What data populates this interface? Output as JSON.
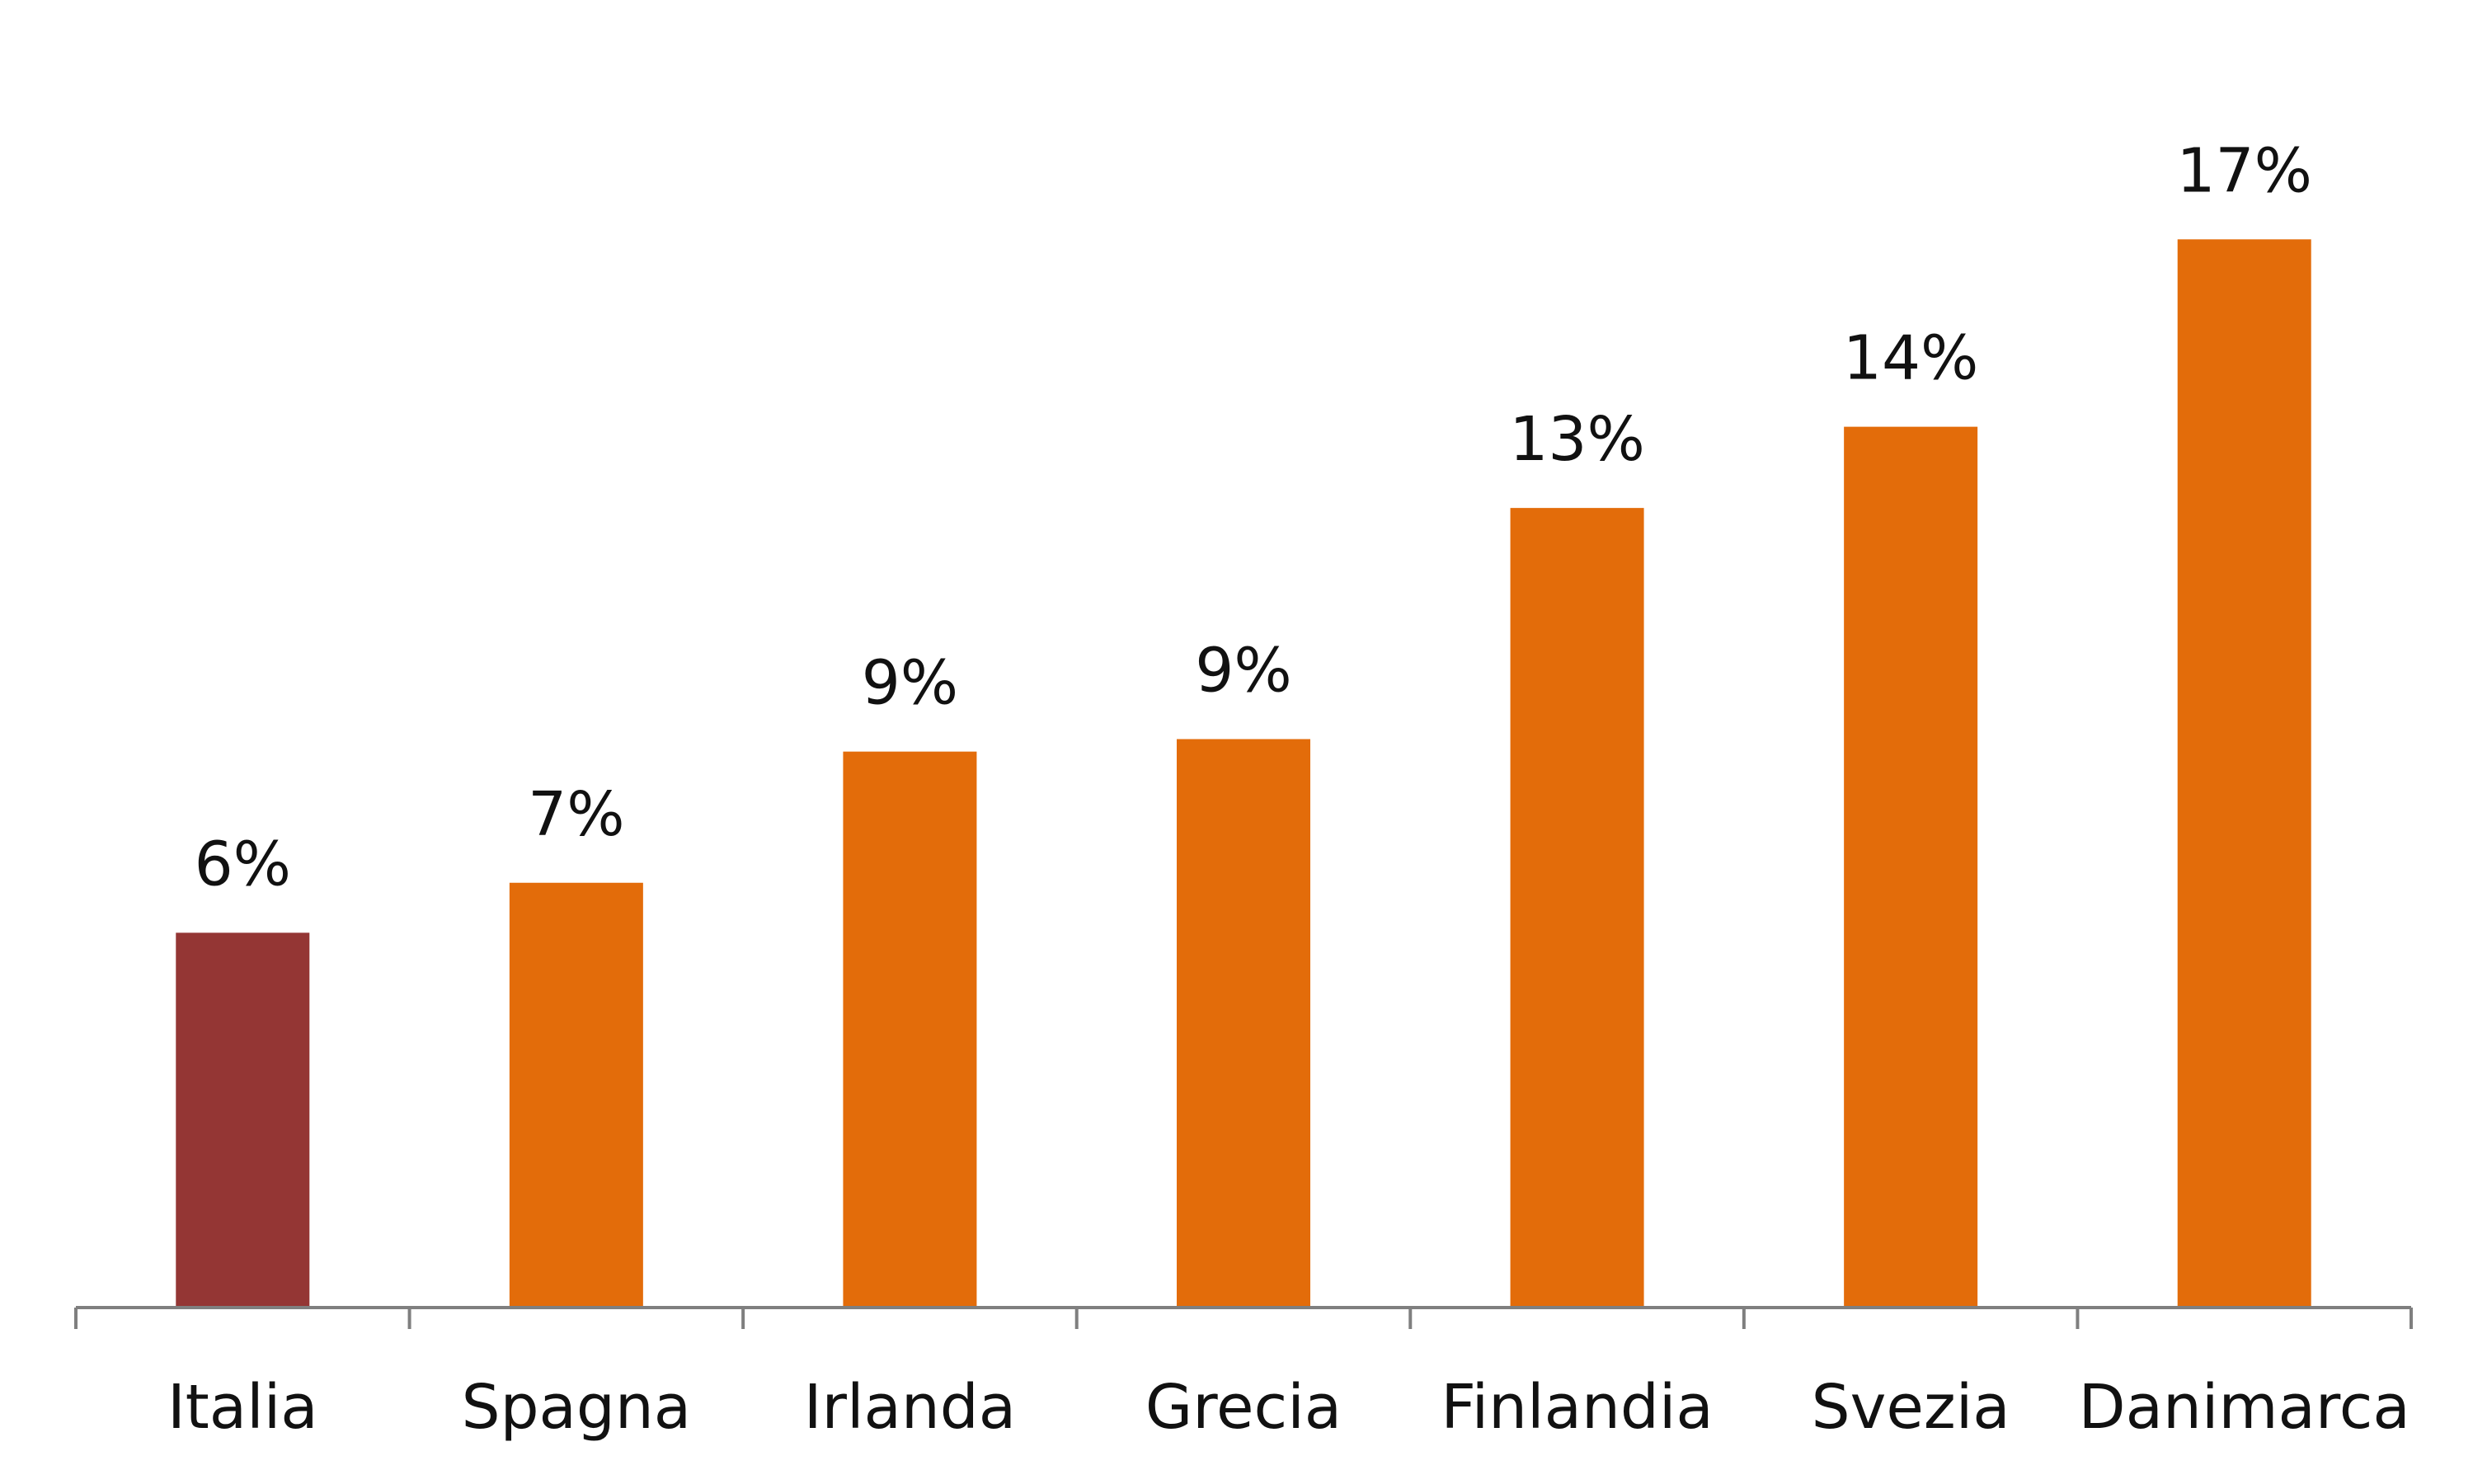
{
  "chart_data": {
    "type": "bar",
    "categories": [
      "Italia",
      "Spagna",
      "Irlanda",
      "Grecia",
      "Finlandia",
      "Svezia",
      "Danimarca"
    ],
    "values": [
      6,
      7,
      9,
      9,
      13,
      14,
      17
    ],
    "value_labels": [
      "6%",
      "7%",
      "9%",
      "9%",
      "13%",
      "14%",
      "17%"
    ],
    "bar_values_estimated": [
      6.0,
      6.8,
      8.9,
      9.1,
      12.8,
      14.1,
      17.1
    ],
    "highlight_category": "Italia",
    "colors": {
      "highlight": "#943634",
      "default": "#E36C0A",
      "axis": "#7F7F7F",
      "text": "#111111"
    },
    "ylim": [
      0,
      17.5
    ],
    "grid": false,
    "legend": "none",
    "title": "",
    "xlabel": "",
    "ylabel": ""
  }
}
